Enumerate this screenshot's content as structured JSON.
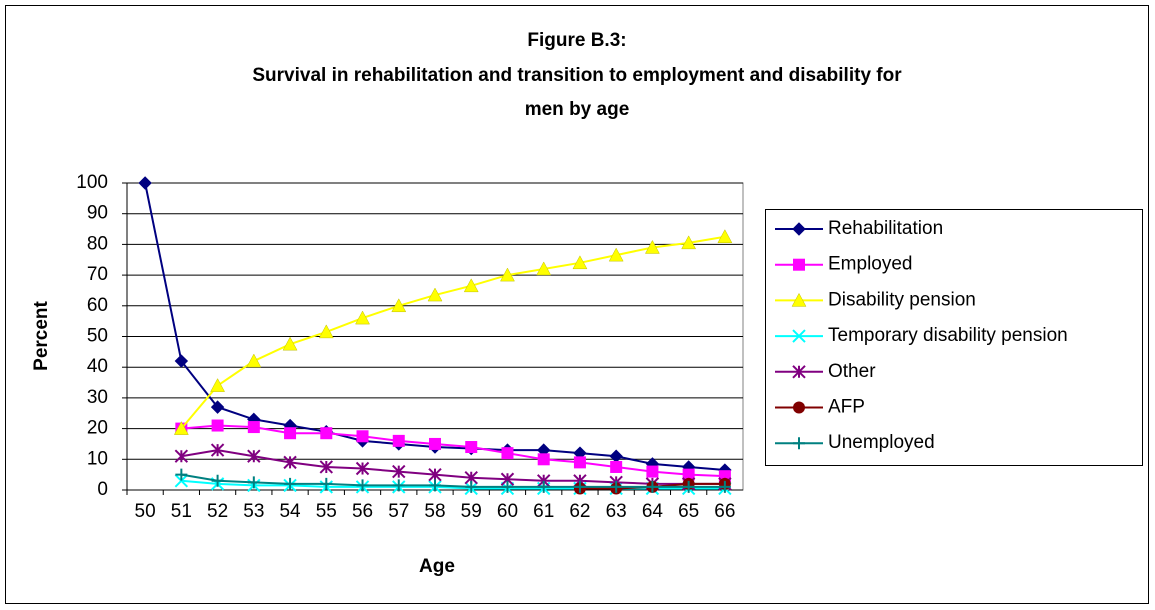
{
  "chart_data": {
    "type": "line",
    "title_lines": [
      "Figure B.3:",
      "Survival in rehabilitation and transition to employment and disability for",
      "men by age"
    ],
    "x_label": "Age",
    "y_label": "Percent",
    "categories": [
      "50",
      "51",
      "52",
      "53",
      "54",
      "55",
      "56",
      "57",
      "58",
      "59",
      "60",
      "61",
      "62",
      "63",
      "64",
      "65",
      "66"
    ],
    "series": [
      {
        "name": "Rehabilitation",
        "color": "#000080",
        "marker": "diamond",
        "values": [
          100,
          42,
          27,
          23,
          21,
          19,
          16,
          15,
          14,
          13.5,
          13,
          13,
          12,
          11,
          8.5,
          7.5,
          6.5
        ]
      },
      {
        "name": "Employed",
        "color": "#ff00ff",
        "marker": "square",
        "values": [
          null,
          20,
          21,
          20.5,
          18.5,
          18.5,
          17.5,
          16,
          15,
          14,
          12,
          10,
          9,
          7.5,
          6,
          5,
          4.5
        ]
      },
      {
        "name": "Disability pension",
        "color": "#ffff00",
        "marker": "triangle",
        "values": [
          null,
          20,
          34,
          42,
          47.5,
          51.5,
          56,
          60,
          63.5,
          66.5,
          70,
          72,
          74,
          76.5,
          79,
          80.5,
          82.5
        ]
      },
      {
        "name": "Temporary disability pension",
        "color": "#00ffff",
        "marker": "x",
        "values": [
          null,
          3,
          2,
          1.5,
          1.5,
          1,
          1,
          1,
          1,
          0.5,
          0.5,
          0.5,
          0.5,
          0.5,
          0.5,
          0.5,
          0.5
        ]
      },
      {
        "name": "Other",
        "color": "#800080",
        "marker": "asterisk",
        "values": [
          null,
          11,
          13,
          11,
          9,
          7.5,
          7,
          6,
          5,
          4,
          3.5,
          3,
          3,
          2.5,
          2,
          2,
          2
        ]
      },
      {
        "name": "AFP",
        "color": "#800000",
        "marker": "circle",
        "values": [
          null,
          null,
          null,
          null,
          null,
          null,
          null,
          null,
          null,
          null,
          null,
          null,
          0.5,
          0.5,
          1,
          2,
          2
        ]
      },
      {
        "name": "Unemployed",
        "color": "#008080",
        "marker": "plus",
        "values": [
          null,
          5,
          3,
          2.5,
          2,
          2,
          1.5,
          1.5,
          1.5,
          1,
          1,
          1,
          1,
          1,
          1,
          1,
          1
        ]
      }
    ],
    "ylim": [
      0,
      100
    ],
    "yticks": [
      0,
      10,
      20,
      30,
      40,
      50,
      60,
      70,
      80,
      90,
      100
    ],
    "grid": true,
    "legend": "right"
  }
}
